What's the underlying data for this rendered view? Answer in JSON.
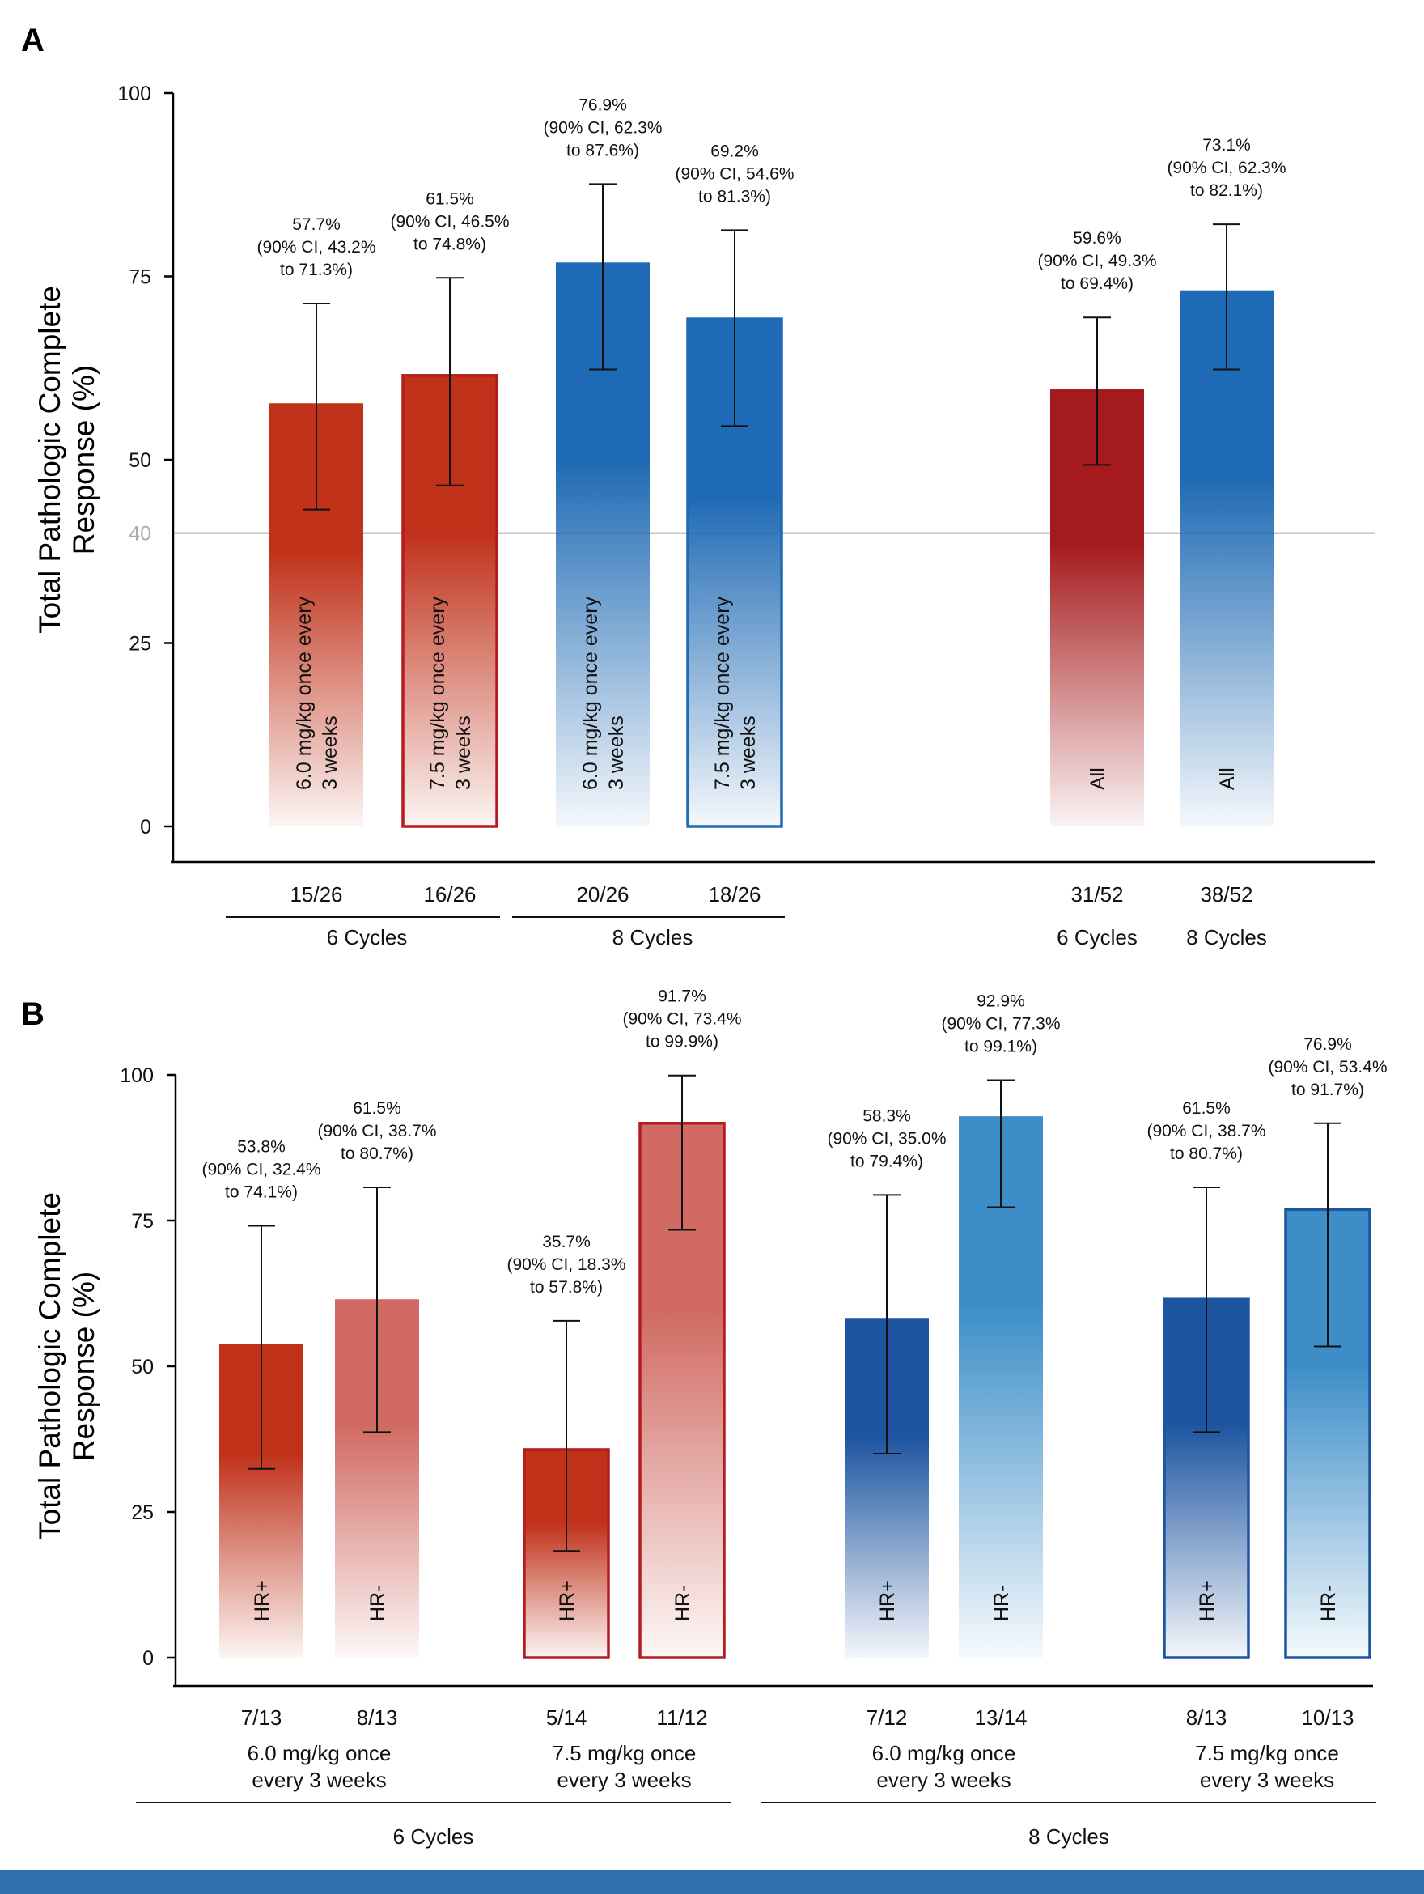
{
  "colors": {
    "red_solid": "#c0311a",
    "red_light": "#d06a62",
    "red_dark": "#a51a1c",
    "red_border": "#b51c20",
    "blue_solid": "#1f6ab4",
    "blue_light": "#3d8ec8",
    "blue_dark": "#1d55a0",
    "blue_border": "#1f6ab4",
    "reference_line": "#aaaaaa",
    "bottom_band": "#2f6fad"
  },
  "chart_data": [
    {
      "panel": "A",
      "type": "bar",
      "ylabel": [
        "Total Pathologic Complete",
        "Response (%)"
      ],
      "ylim": [
        0,
        100
      ],
      "yticks": [
        "0",
        "25",
        "50",
        "75",
        "100"
      ],
      "reference_line": {
        "value": 40,
        "label": "40"
      },
      "bars": [
        {
          "value": 57.7,
          "ci": [
            43.2,
            71.3
          ],
          "annotation": [
            "57.7%",
            "(90% CI, 43.2%",
            "to 71.3%)"
          ],
          "inner_label": [
            "6.0 mg/kg once every",
            "3 weeks"
          ],
          "count": "15/26",
          "style": "red-solid"
        },
        {
          "value": 61.5,
          "ci": [
            46.5,
            74.8
          ],
          "annotation": [
            "61.5%",
            "(90% CI, 46.5%",
            "to 74.8%)"
          ],
          "inner_label": [
            "7.5 mg/kg once every",
            "3 weeks"
          ],
          "count": "16/26",
          "style": "red-outline"
        },
        {
          "value": 76.9,
          "ci": [
            62.3,
            87.6
          ],
          "annotation": [
            "76.9%",
            "(90% CI, 62.3%",
            "to 87.6%)"
          ],
          "inner_label": [
            "6.0 mg/kg once every",
            "3 weeks"
          ],
          "count": "20/26",
          "style": "blue-solid"
        },
        {
          "value": 69.2,
          "ci": [
            54.6,
            81.3
          ],
          "annotation": [
            "69.2%",
            "(90% CI, 54.6%",
            "to 81.3%)"
          ],
          "inner_label": [
            "7.5 mg/kg once every",
            "3 weeks"
          ],
          "count": "18/26",
          "style": "blue-outline"
        },
        {
          "value": 59.6,
          "ci": [
            49.3,
            69.4
          ],
          "annotation": [
            "59.6%",
            "(90% CI, 49.3%",
            "to 69.4%)"
          ],
          "inner_label": [
            "All"
          ],
          "count": "31/52",
          "style": "red-dark"
        },
        {
          "value": 73.1,
          "ci": [
            62.3,
            82.1
          ],
          "annotation": [
            "73.1%",
            "(90% CI, 62.3%",
            "to 82.1%)"
          ],
          "inner_label": [
            "All"
          ],
          "count": "38/52",
          "style": "blue-solid"
        }
      ],
      "groups": [
        {
          "label": "6 Cycles",
          "bars": [
            0,
            1
          ],
          "underline": true
        },
        {
          "label": "8 Cycles",
          "bars": [
            2,
            3
          ],
          "underline": true
        },
        {
          "label": "6 Cycles",
          "bars": [
            4
          ],
          "underline": false
        },
        {
          "label": "8 Cycles",
          "bars": [
            5
          ],
          "underline": false
        }
      ]
    },
    {
      "panel": "B",
      "type": "bar",
      "ylabel": [
        "Total Pathologic Complete",
        "Response (%)"
      ],
      "ylim": [
        0,
        100
      ],
      "yticks": [
        "0",
        "25",
        "50",
        "75",
        "100"
      ],
      "bars": [
        {
          "value": 53.8,
          "ci": [
            32.4,
            74.1
          ],
          "annotation": [
            "53.8%",
            "(90% CI, 32.4%",
            "to 74.1%)"
          ],
          "inner_label": [
            "HR+"
          ],
          "count": "7/13",
          "style": "red-solid"
        },
        {
          "value": 61.5,
          "ci": [
            38.7,
            80.7
          ],
          "annotation": [
            "61.5%",
            "(90% CI, 38.7%",
            "to 80.7%)"
          ],
          "inner_label": [
            "HR-"
          ],
          "count": "8/13",
          "style": "red-light"
        },
        {
          "value": 35.7,
          "ci": [
            18.3,
            57.8
          ],
          "annotation": [
            "35.7%",
            "(90% CI, 18.3%",
            "to 57.8%)"
          ],
          "inner_label": [
            "HR+"
          ],
          "count": "5/14",
          "style": "red-solid-outline"
        },
        {
          "value": 91.7,
          "ci": [
            73.4,
            99.9
          ],
          "annotation": [
            "91.7%",
            "(90% CI, 73.4%",
            "to 99.9%)"
          ],
          "inner_label": [
            "HR-"
          ],
          "count": "11/12",
          "style": "red-light-outline"
        },
        {
          "value": 58.3,
          "ci": [
            35.0,
            79.4
          ],
          "annotation": [
            "58.3%",
            "(90% CI, 35.0%",
            "to 79.4%)"
          ],
          "inner_label": [
            "HR+"
          ],
          "count": "7/12",
          "style": "blue-dark"
        },
        {
          "value": 92.9,
          "ci": [
            77.3,
            99.1
          ],
          "annotation": [
            "92.9%",
            "(90% CI, 77.3%",
            "to 99.1%)"
          ],
          "inner_label": [
            "HR-"
          ],
          "count": "13/14",
          "style": "blue-light"
        },
        {
          "value": 61.5,
          "ci": [
            38.7,
            80.7
          ],
          "annotation": [
            "61.5%",
            "(90% CI, 38.7%",
            "to 80.7%)"
          ],
          "inner_label": [
            "HR+"
          ],
          "count": "8/13",
          "style": "blue-dark-outline"
        },
        {
          "value": 76.9,
          "ci": [
            53.4,
            91.7
          ],
          "annotation": [
            "76.9%",
            "(90% CI, 53.4%",
            "to 91.7%)"
          ],
          "inner_label": [
            "HR-"
          ],
          "count": "10/13",
          "style": "blue-light-outline"
        }
      ],
      "dose_groups": [
        {
          "label": [
            "6.0 mg/kg once",
            "every 3 weeks"
          ],
          "bars": [
            0,
            1
          ]
        },
        {
          "label": [
            "7.5 mg/kg once",
            "every 3 weeks"
          ],
          "bars": [
            2,
            3
          ]
        },
        {
          "label": [
            "6.0 mg/kg once",
            "every 3 weeks"
          ],
          "bars": [
            4,
            5
          ]
        },
        {
          "label": [
            "7.5 mg/kg once",
            "every 3 weeks"
          ],
          "bars": [
            6,
            7
          ]
        }
      ],
      "cycle_groups": [
        {
          "label": "6 Cycles",
          "bars": [
            0,
            3
          ]
        },
        {
          "label": "8 Cycles",
          "bars": [
            4,
            7
          ]
        }
      ]
    }
  ]
}
